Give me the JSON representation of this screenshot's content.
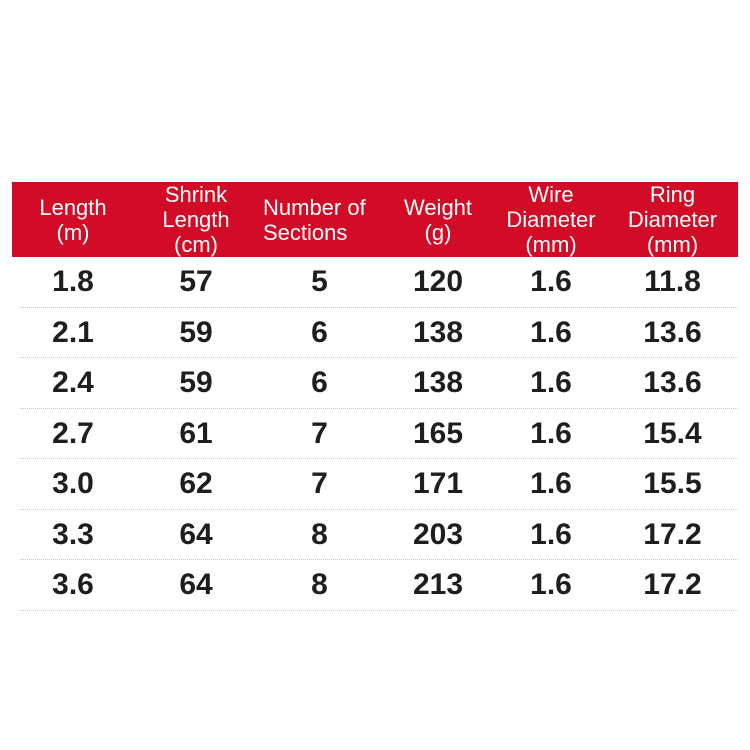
{
  "chart_data": {
    "type": "table",
    "columns": [
      {
        "name": "Length (m)",
        "label": "Length\n(m)"
      },
      {
        "name": "Shrink Length (cm)",
        "label": "Shrink\nLength\n(cm)"
      },
      {
        "name": "Number of Sections",
        "label": "Number of\nSections"
      },
      {
        "name": "Weight (g)",
        "label": "Weight\n(g)"
      },
      {
        "name": "Wire Diameter (mm)",
        "label": "Wire\nDiameter\n(mm)"
      },
      {
        "name": "Ring Diameter (mm)",
        "label": "Ring\nDiameter\n(mm)"
      }
    ],
    "rows": [
      [
        "1.8",
        "57",
        "5",
        "120",
        "1.6",
        "11.8"
      ],
      [
        "2.1",
        "59",
        "6",
        "138",
        "1.6",
        "13.6"
      ],
      [
        "2.4",
        "59",
        "6",
        "138",
        "1.6",
        "13.6"
      ],
      [
        "2.7",
        "61",
        "7",
        "165",
        "1.6",
        "15.4"
      ],
      [
        "3.0",
        "62",
        "7",
        "171",
        "1.6",
        "15.5"
      ],
      [
        "3.3",
        "64",
        "8",
        "203",
        "1.6",
        "17.2"
      ],
      [
        "3.6",
        "64",
        "8",
        "213",
        "1.6",
        "17.2"
      ]
    ]
  },
  "colors": {
    "header_bg": "#d20b26",
    "header_text": "#ffffff",
    "body_text": "#1e1e20",
    "divider": "#c8c8c8",
    "background": "#ffffff"
  }
}
